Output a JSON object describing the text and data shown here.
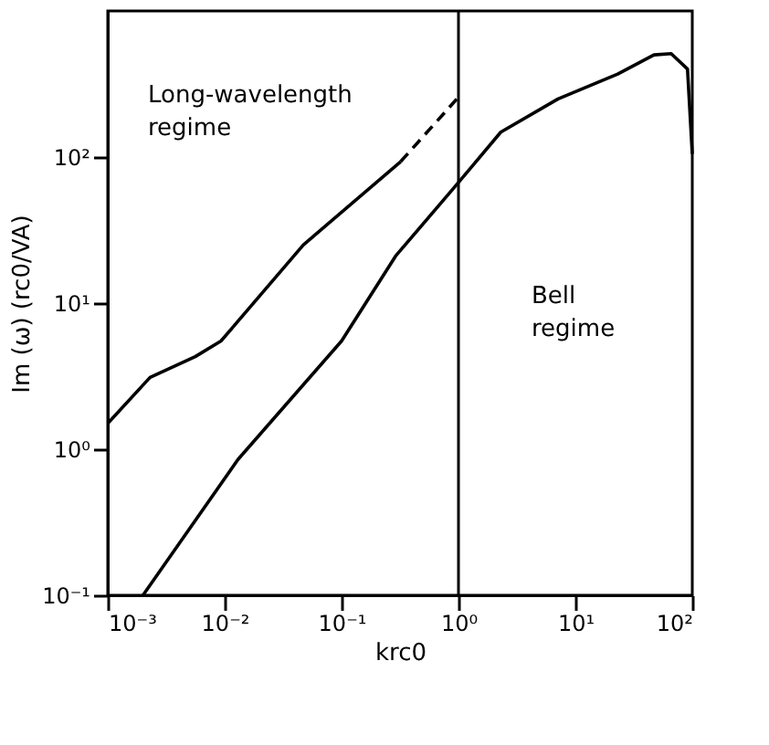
{
  "chart_data": {
    "type": "line",
    "xlabel": "krc0",
    "ylabel": "Im (ω) (rc0/VA)",
    "log": "xy",
    "grid": false,
    "marker": "none",
    "xlim": [
      0.001,
      100
    ],
    "ylim": [
      0.1,
      1000
    ],
    "xticks": [
      {
        "value": 0.001,
        "label": "10⁻³"
      },
      {
        "value": 0.01,
        "label": "10⁻²"
      },
      {
        "value": 0.1,
        "label": "10⁻¹"
      },
      {
        "value": 1,
        "label": "10⁰"
      },
      {
        "value": 10,
        "label": "10¹"
      },
      {
        "value": 100,
        "label": "10²"
      }
    ],
    "yticks": [
      {
        "value": 0.1,
        "label": "10⁻¹"
      },
      {
        "value": 1,
        "label": "10⁰"
      },
      {
        "value": 10,
        "label": "10¹"
      },
      {
        "value": 100,
        "label": "10²"
      }
    ],
    "series": [
      {
        "color": "#000000",
        "line_style": "solid",
        "x": [
          0.001,
          0.0023,
          0.0056,
          0.0093,
          0.047,
          0.32
        ],
        "values": [
          1.5,
          3.1,
          4.3,
          5.5,
          25,
          93
        ]
      },
      {
        "color": "#000000",
        "line_style": "dashed",
        "x": [
          0.32,
          1
        ],
        "values": [
          93,
          257
        ]
      },
      {
        "color": "#000000",
        "line_style": "solid",
        "x": [
          0.002,
          0.013,
          0.1,
          0.29,
          1,
          2.3,
          7.1,
          23,
          47,
          66,
          91,
          100
        ],
        "values": [
          0.1,
          0.85,
          5.5,
          21,
          67,
          148,
          250,
          370,
          500,
          510,
          400,
          105
        ]
      }
    ],
    "ref_lines": [
      {
        "axis": "x",
        "value": 1,
        "color": "#000000",
        "line_style": "solid"
      }
    ],
    "annotations": [
      "Long-wavelength\nregime",
      "Bell\nregime"
    ]
  }
}
